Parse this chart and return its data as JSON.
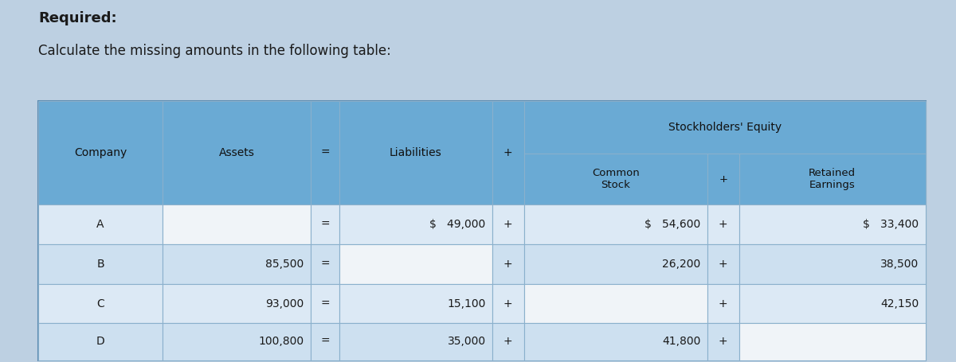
{
  "title_line1": "Required:",
  "title_line2": "Calculate the missing amounts in the following table:",
  "header_stockholders": "Stockholders' Equity",
  "rows": [
    [
      "A",
      "",
      "=",
      "$   49,000",
      "+",
      "$   54,600",
      "+",
      "$   33,400"
    ],
    [
      "B",
      "85,500",
      "=",
      "",
      "+",
      "26,200",
      "+",
      "38,500"
    ],
    [
      "C",
      "93,000",
      "=",
      "15,100",
      "+",
      "",
      "+",
      "42,150"
    ],
    [
      "D",
      "100,800",
      "=",
      "35,000",
      "+",
      "41,800",
      "+",
      ""
    ]
  ],
  "header_bg": "#6aaad4",
  "row_bg_even": "#dce9f5",
  "row_bg_odd": "#cde0f0",
  "missing_bg": "#f0f4f8",
  "text_color": "#1a1a1a",
  "header_text_color": "#111111",
  "figure_bg": "#bdd0e2",
  "table_border_color": "#5a8ab0",
  "cell_border_color": "#8ab0cc"
}
